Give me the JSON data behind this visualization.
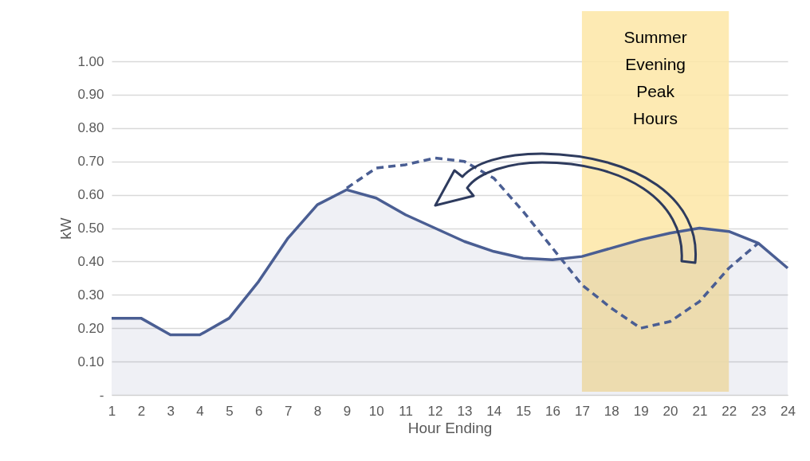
{
  "chart_data": {
    "type": "area",
    "xlabel": "Hour Ending",
    "ylabel": "kW",
    "x": [
      1,
      2,
      3,
      4,
      5,
      6,
      7,
      8,
      9,
      10,
      11,
      12,
      13,
      14,
      15,
      16,
      17,
      18,
      19,
      20,
      21,
      22,
      23,
      24
    ],
    "series": [
      {
        "color": "#4a5e93",
        "line_style": "solid",
        "values": [
          0.23,
          0.23,
          0.18,
          0.18,
          0.23,
          0.34,
          0.47,
          0.57,
          0.615,
          0.59,
          0.54,
          0.5,
          0.46,
          0.43,
          0.41,
          0.405,
          0.415,
          0.44,
          0.465,
          0.485,
          0.5,
          0.49,
          0.455,
          0.38
        ]
      },
      {
        "type": "line",
        "color": "#4a5e93",
        "line_style": "dashed",
        "values": [
          null,
          null,
          null,
          null,
          null,
          null,
          null,
          null,
          0.62,
          0.68,
          0.69,
          0.71,
          0.7,
          0.65,
          0.55,
          0.44,
          0.33,
          0.26,
          0.2,
          0.22,
          0.28,
          0.38,
          0.455,
          null
        ]
      }
    ],
    "xlim": [
      1,
      24
    ],
    "xticks": [
      1,
      2,
      3,
      4,
      5,
      6,
      7,
      8,
      9,
      10,
      11,
      12,
      13,
      14,
      15,
      16,
      17,
      18,
      19,
      20,
      21,
      22,
      23,
      24
    ],
    "ylim": [
      0,
      1
    ],
    "yticks": [
      {
        "value": 0,
        "label": "-"
      },
      {
        "value": 0.1,
        "label": "0.10"
      },
      {
        "value": 0.2,
        "label": "0.20"
      },
      {
        "value": 0.3,
        "label": "0.30"
      },
      {
        "value": 0.4,
        "label": "0.40"
      },
      {
        "value": 0.5,
        "label": "0.50"
      },
      {
        "value": 0.6,
        "label": "0.60"
      },
      {
        "value": 0.7,
        "label": "0.70"
      },
      {
        "value": 0.8,
        "label": "0.80"
      },
      {
        "value": 0.9,
        "label": "0.90"
      },
      {
        "value": 1.0,
        "label": "1.00"
      }
    ],
    "grid": "y",
    "bands": [
      {
        "axis": "x",
        "from": 17,
        "to": 22,
        "label": "Summer Evening Peak Hours",
        "color": "#fde6a6"
      }
    ]
  }
}
